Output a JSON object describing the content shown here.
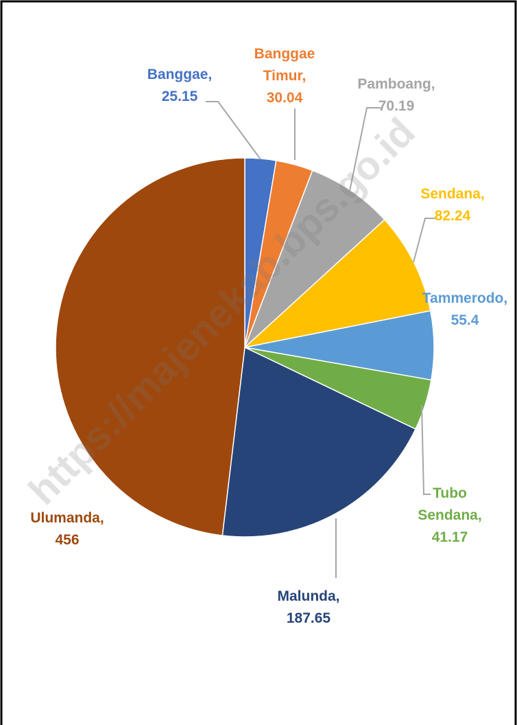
{
  "chart_data": {
    "type": "pie",
    "categories": [
      "Banggae",
      "Banggae Timur",
      "Pamboang",
      "Sendana",
      "Tammerodo",
      "Tubo Sendana",
      "Malunda",
      "Ulumanda"
    ],
    "values": [
      25.15,
      30.04,
      70.19,
      82.24,
      55.4,
      41.17,
      187.65,
      456
    ],
    "colors": [
      "#4472c4",
      "#ed7d31",
      "#a5a5a5",
      "#ffc000",
      "#5b9bd5",
      "#70ad47",
      "#264478",
      "#9e480e"
    ],
    "label_separator": ",",
    "watermark": "https://majenekab.bps.go.id"
  }
}
